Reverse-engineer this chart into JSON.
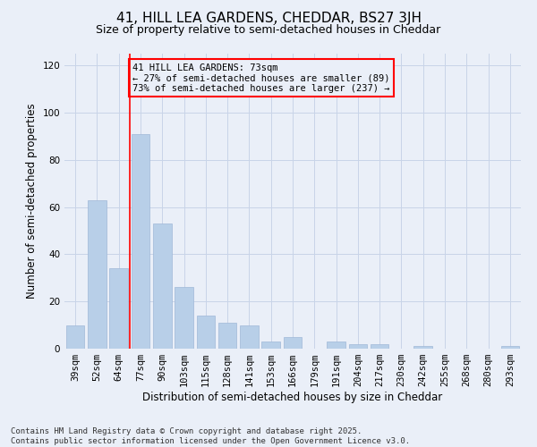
{
  "title1": "41, HILL LEA GARDENS, CHEDDAR, BS27 3JH",
  "title2": "Size of property relative to semi-detached houses in Cheddar",
  "xlabel": "Distribution of semi-detached houses by size in Cheddar",
  "ylabel": "Number of semi-detached properties",
  "categories": [
    "39sqm",
    "52sqm",
    "64sqm",
    "77sqm",
    "90sqm",
    "103sqm",
    "115sqm",
    "128sqm",
    "141sqm",
    "153sqm",
    "166sqm",
    "179sqm",
    "191sqm",
    "204sqm",
    "217sqm",
    "230sqm",
    "242sqm",
    "255sqm",
    "268sqm",
    "280sqm",
    "293sqm"
  ],
  "values": [
    10,
    63,
    34,
    91,
    53,
    26,
    14,
    11,
    10,
    3,
    5,
    0,
    3,
    2,
    2,
    0,
    1,
    0,
    0,
    0,
    1
  ],
  "bar_color": "#b8cfe8",
  "bar_edge_color": "#a0b8d8",
  "property_label": "41 HILL LEA GARDENS: 73sqm",
  "pct_smaller": 27,
  "pct_larger": 73,
  "count_smaller": 89,
  "count_larger": 237,
  "vline_color": "red",
  "annotation_box_color": "red",
  "ylim": [
    0,
    125
  ],
  "yticks": [
    0,
    20,
    40,
    60,
    80,
    100,
    120
  ],
  "grid_color": "#c8d4e8",
  "bg_color": "#eaeff8",
  "footer": "Contains HM Land Registry data © Crown copyright and database right 2025.\nContains public sector information licensed under the Open Government Licence v3.0.",
  "title1_fontsize": 11,
  "title2_fontsize": 9,
  "xlabel_fontsize": 8.5,
  "ylabel_fontsize": 8.5,
  "tick_fontsize": 7.5,
  "annot_fontsize": 7.5,
  "footer_fontsize": 6.5
}
